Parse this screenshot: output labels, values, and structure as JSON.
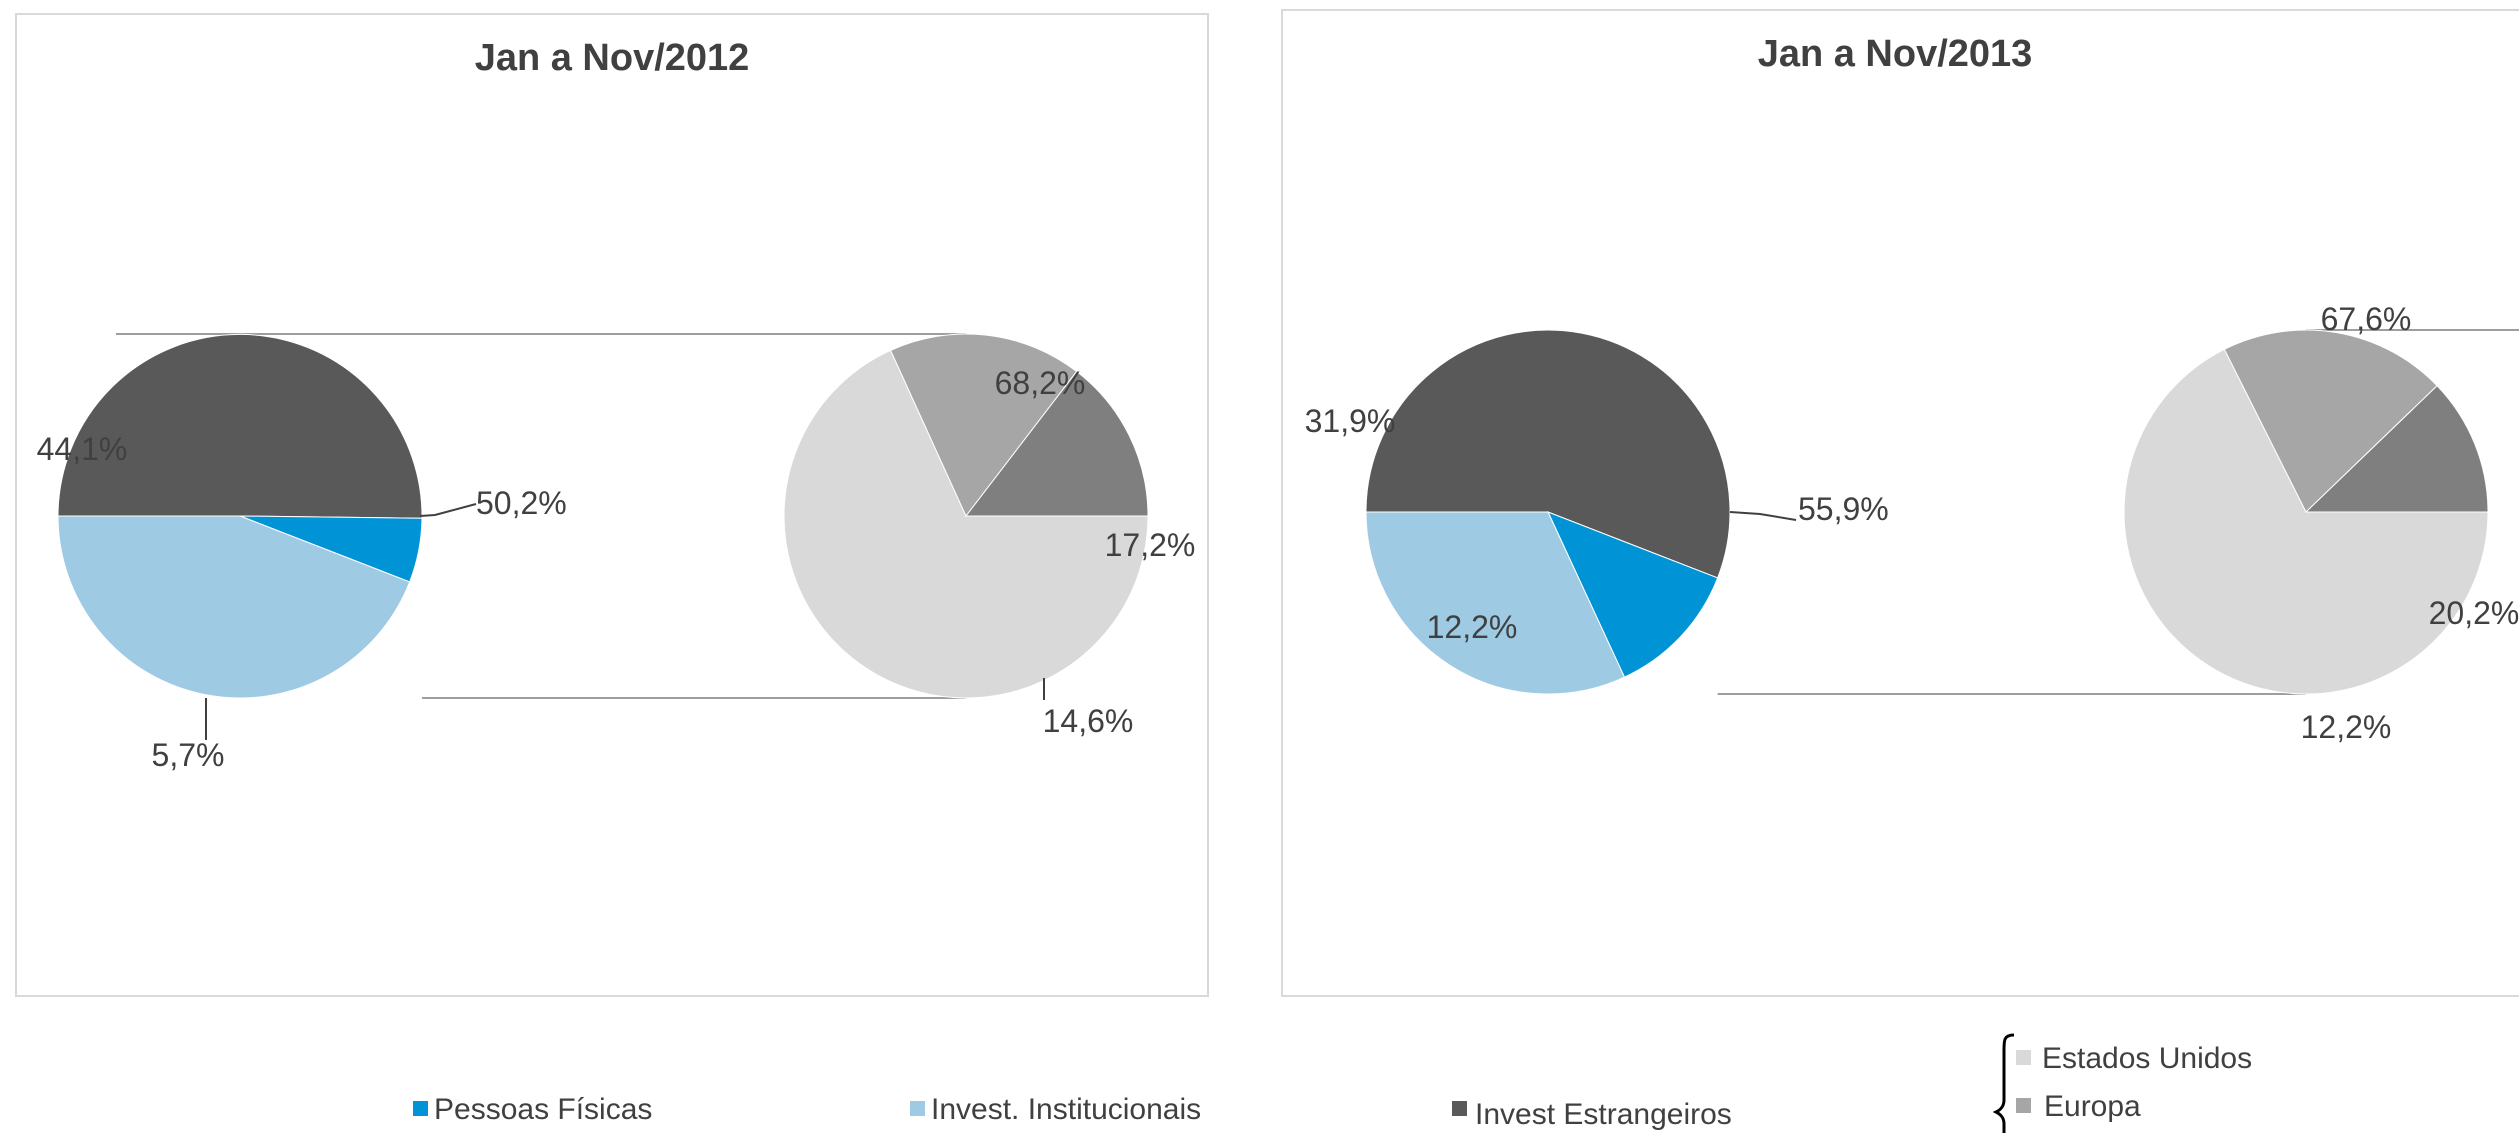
{
  "chart_data": [
    {
      "type": "pie",
      "title": "Jan a Nov/2012",
      "main_pie": {
        "slices": [
          {
            "name": "Invest Estrangeiros",
            "value": 50.2,
            "label": "50,2%",
            "color": "#595959"
          },
          {
            "name": "Pessoas Físicas",
            "value": 5.7,
            "label": "5,7%",
            "color": "#0094d6"
          },
          {
            "name": "Invest. Institucionais",
            "value": 44.1,
            "label": "44,1%",
            "color": "#9ecae3"
          }
        ]
      },
      "secondary_pie": {
        "slices": [
          {
            "name": "Estados Unidos",
            "value": 68.2,
            "label": "68,2%",
            "color": "#d9d9d9"
          },
          {
            "name": "Europa",
            "value": 17.2,
            "label": "17,2%",
            "color": "#a6a6a6"
          },
          {
            "name": "",
            "value": 14.6,
            "label": "14,6%",
            "color": "#7f7f7f"
          }
        ]
      }
    },
    {
      "type": "pie",
      "title": "Jan a Nov/2013",
      "main_pie": {
        "slices": [
          {
            "name": "Invest Estrangeiros",
            "value": 55.9,
            "label": "55,9%",
            "color": "#595959"
          },
          {
            "name": "Pessoas Físicas",
            "value": 12.2,
            "label": "12,2%",
            "color": "#0094d6"
          },
          {
            "name": "Invest. Institucionais",
            "value": 31.9,
            "label": "31,9%",
            "color": "#9ecae3"
          }
        ]
      },
      "secondary_pie": {
        "slices": [
          {
            "name": "Estados Unidos",
            "value": 67.6,
            "label": "67,6%",
            "color": "#d9d9d9"
          },
          {
            "name": "Europa",
            "value": 20.2,
            "label": "20,2%",
            "color": "#a6a6a6"
          },
          {
            "name": "",
            "value": 12.2,
            "label": "12,2%",
            "color": "#7f7f7f"
          }
        ]
      }
    }
  ],
  "legend": {
    "main": [
      {
        "label": "Pessoas Físicas",
        "color": "#0094d6"
      },
      {
        "label": "Invest. Institucionais",
        "color": "#9ecae3"
      },
      {
        "label": "Invest Estrangeiros",
        "color": "#595959"
      }
    ],
    "breakdown": [
      {
        "label": "Estados Unidos",
        "color": "#d9d9d9"
      },
      {
        "label": "Europa",
        "color": "#a6a6a6"
      }
    ]
  }
}
